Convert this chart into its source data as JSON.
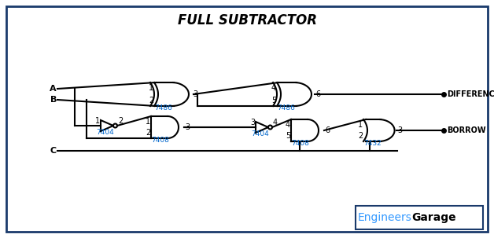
{
  "title": "FULL SUBTRACTOR",
  "bg_color": "#ffffff",
  "border_color": "#1a3a6b",
  "line_color": "#000000",
  "chip_color": "#0066cc",
  "watermark_engineers": "Engineers",
  "watermark_garage": "Garage",
  "A_label": "A",
  "B_label": "B",
  "C_label": "C",
  "diff_label": "DIFFERENCE",
  "borrow_label": "BORROW",
  "chips": [
    "7486",
    "7404",
    "7408",
    "7486",
    "7404",
    "7408",
    "7432"
  ]
}
